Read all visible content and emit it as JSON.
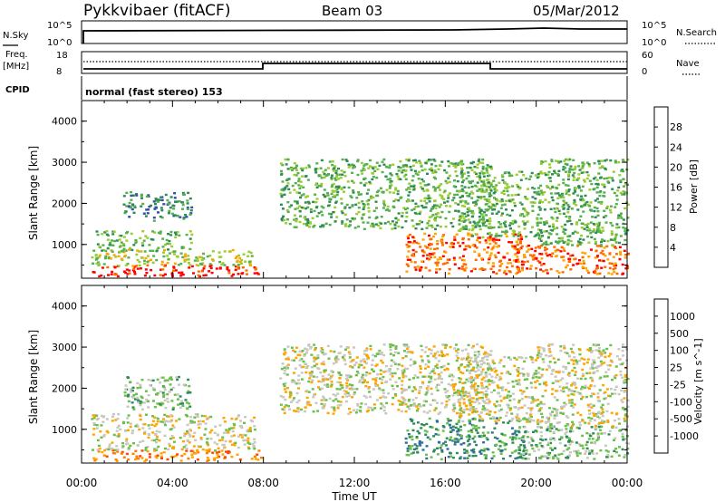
{
  "header": {
    "station": "Pykkvibaer (fitACF)",
    "beam": "Beam 03",
    "date": "05/Mar/2012"
  },
  "status_panels": {
    "nsky_label": "N.Sky",
    "nsky_ticks": [
      "10^5",
      "10^0"
    ],
    "nsearch_label": "N.Search",
    "nsearch_ticks": [
      "10^5",
      "10^0"
    ],
    "freq_label": "Freq.",
    "freq_unit": "[MHz]",
    "freq_ticks": [
      "18",
      "8"
    ],
    "nave_label": "Nave",
    "nave_ticks": [
      "60",
      "0"
    ],
    "cpid_label": "CPID",
    "cpid_text": "normal (fast stereo) 153"
  },
  "chart_data": [
    {
      "type": "heatmap",
      "name": "power",
      "ylabel": "Slant Range [km]",
      "ylim": [
        180,
        4500
      ],
      "yticks": [
        "1000",
        "2000",
        "3000",
        "4000"
      ],
      "xlim": [
        0,
        24
      ],
      "colorbar_label": "Power [dB]",
      "colorbar_ticks": [
        "4",
        "8",
        "12",
        "16",
        "20",
        "24",
        "28"
      ],
      "colors": [
        "#0000ff",
        "#2f4fa8",
        "#2e8b57",
        "#56b04d",
        "#9acd32",
        "#ffa500",
        "#ff6a00",
        "#ff0000"
      ],
      "echo_regions": [
        {
          "x": [
            0.4,
            7.9
          ],
          "y": [
            250,
            520
          ],
          "level": 7
        },
        {
          "x": [
            0.4,
            7.6
          ],
          "y": [
            500,
            900
          ],
          "level": 4
        },
        {
          "x": [
            0.6,
            4.8
          ],
          "y": [
            850,
            1350
          ],
          "level": 3
        },
        {
          "x": [
            1.8,
            4.8
          ],
          "y": [
            1600,
            2300
          ],
          "level": 2
        },
        {
          "x": [
            8.7,
            18.0
          ],
          "y": [
            1400,
            3100
          ],
          "level": 3
        },
        {
          "x": [
            14.2,
            19.5
          ],
          "y": [
            300,
            1300
          ],
          "level": 6
        },
        {
          "x": [
            16.5,
            20.2
          ],
          "y": [
            1200,
            2800
          ],
          "level": 3
        },
        {
          "x": [
            19.0,
            24.0
          ],
          "y": [
            300,
            1000
          ],
          "level": 6
        },
        {
          "x": [
            20.0,
            24.0
          ],
          "y": [
            1000,
            3100
          ],
          "level": 3
        }
      ]
    },
    {
      "type": "heatmap",
      "name": "velocity",
      "ylabel": "Slant Range [km]",
      "ylim": [
        180,
        4500
      ],
      "yticks": [
        "1000",
        "2000",
        "3000",
        "4000"
      ],
      "xlim": [
        0,
        24
      ],
      "xticks": [
        "00:00",
        "04:00",
        "08:00",
        "12:00",
        "16:00",
        "20:00",
        "00:00"
      ],
      "xlabel": "Time UT",
      "colorbar_label": "Velocity [m s^-1]",
      "colorbar_ticks": [
        "1000",
        "500",
        "100",
        "25",
        "-25",
        "-100",
        "-500",
        "-1000"
      ],
      "colors": [
        "#2a3fa8",
        "#2e6ea0",
        "#2e8b57",
        "#6ac04a",
        "#c8c8c0",
        "#ffa500",
        "#ff7f00",
        "#ff4500",
        "#ff0000"
      ],
      "echo_regions": [
        {
          "x": [
            0.4,
            7.9
          ],
          "y": [
            250,
            520
          ],
          "level": 6
        },
        {
          "x": [
            0.4,
            7.6
          ],
          "y": [
            500,
            1400
          ],
          "level": 4
        },
        {
          "x": [
            1.8,
            4.8
          ],
          "y": [
            1500,
            2300
          ],
          "level": 3
        },
        {
          "x": [
            8.7,
            18.0
          ],
          "y": [
            1400,
            3100
          ],
          "level": 4
        },
        {
          "x": [
            14.2,
            19.5
          ],
          "y": [
            300,
            1300
          ],
          "level": 2
        },
        {
          "x": [
            16.5,
            20.2
          ],
          "y": [
            1200,
            2800
          ],
          "level": 4
        },
        {
          "x": [
            19.0,
            24.0
          ],
          "y": [
            300,
            1100
          ],
          "level": 3
        },
        {
          "x": [
            20.0,
            24.0
          ],
          "y": [
            1100,
            3100
          ],
          "level": 4
        }
      ]
    }
  ]
}
